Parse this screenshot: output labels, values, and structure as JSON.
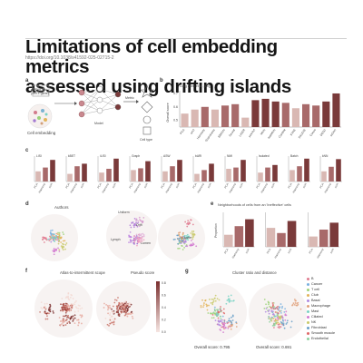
{
  "header": {
    "title_line1": "Limitations of cell embedding metrics",
    "title_line2": "assessed using drifting islands",
    "doi": "https://doi.org/10.1038/s41592-025-02715-2"
  },
  "panel_labels": {
    "a": "a",
    "b": "b",
    "c": "c",
    "d": "d",
    "e": "e",
    "f": "f",
    "g": "g"
  },
  "panel_a": {
    "input_label_1": "scRNA-seq",
    "input_label_2": "(cell × gene)",
    "embedding_label": "Cell embedding",
    "model_label": "Model",
    "cell_type_label": "Cell type",
    "metric_label": "Metric"
  },
  "panel_b": {
    "ylabel": "Overall score",
    "legend_label": "Lung (Ren et al. [sic])",
    "yticks": [
      "0.7",
      "0.6",
      "0.5"
    ]
  },
  "panel_c": {
    "subplots": [
      "LISI",
      "kBET",
      "iLISI",
      "Graph",
      "ASW",
      "bARI",
      "NMI",
      "Isolated",
      "Batch",
      "kNN"
    ],
    "xticks": [
      "PCA",
      "Harmony",
      "scVI"
    ]
  },
  "panel_d": {
    "label_authors": "Authors",
    "label_ids": "IDs",
    "islands": [
      "Uniform",
      "Lymph",
      "Drift",
      "Lumen",
      "Cluster"
    ]
  },
  "panel_e": {
    "title": "Neighborhoods of cells from an 'Ineffective' cells",
    "ylabel": "Proportion",
    "xticks": [
      "PCA",
      "Harmony",
      "scVI"
    ]
  },
  "panel_f": {
    "title_left": "Atlas-to-intermittent scope",
    "title_right": "Pseudo score",
    "colorbar_ticks": [
      "0.8",
      "0.6",
      "0.4",
      "0.2",
      "0.0"
    ]
  },
  "panel_g": {
    "title": "Cluster ratio and distance",
    "score_left": "Overall score: 0.795",
    "score_right": "Overall score: 0.691",
    "legend": [
      "B",
      "Cancer",
      "T cell",
      "Club",
      "Basal",
      "Macrophage",
      "Mast",
      "Ciliated",
      "NK",
      "Fibroblast",
      "Smooth muscle",
      "Endothelial"
    ]
  },
  "chart_data": [
    {
      "type": "bar",
      "title": "",
      "categories": [
        "PCA",
        "scVI",
        "Harmony",
        "Scanorama",
        "BBKNN",
        "Seurat",
        "LIGER",
        "scANVI",
        "MNN",
        "fastMNN",
        "Combat",
        "trVAE",
        "SAUCIE",
        "Conos",
        "DESC",
        "scGen"
      ],
      "values": [
        0.55,
        0.58,
        0.6,
        0.58,
        0.61,
        0.62,
        0.52,
        0.65,
        0.66,
        0.64,
        0.63,
        0.59,
        0.62,
        0.61,
        0.64,
        0.7
      ],
      "ylim": [
        0.45,
        0.72
      ],
      "ylabel": "Overall score"
    },
    {
      "type": "bar",
      "title": "",
      "categories": [
        "PCA",
        "Harmony",
        "scVI"
      ],
      "series": [
        {
          "name": "LISI",
          "values": [
            0.4,
            0.55,
            0.85
          ]
        },
        {
          "name": "kBET",
          "values": [
            0.3,
            0.6,
            0.7
          ]
        },
        {
          "name": "iLISI",
          "values": [
            0.35,
            0.5,
            0.9
          ]
        },
        {
          "name": "Graph",
          "values": [
            0.45,
            0.52,
            0.8
          ]
        },
        {
          "name": "ASW",
          "values": [
            0.4,
            0.6,
            0.85
          ]
        },
        {
          "name": "bARI",
          "values": [
            0.3,
            0.45,
            0.7
          ]
        },
        {
          "name": "NMI",
          "values": [
            0.5,
            0.55,
            0.85
          ]
        },
        {
          "name": "Isolated",
          "values": [
            0.35,
            0.55,
            0.65
          ]
        },
        {
          "name": "Batch",
          "values": [
            0.45,
            0.6,
            0.9
          ]
        },
        {
          "name": "kNN",
          "values": [
            0.4,
            0.58,
            0.88
          ]
        }
      ],
      "ylim": [
        0,
        1
      ]
    },
    {
      "type": "bar",
      "title": "",
      "categories": [
        "PCA",
        "Harmony",
        "scVI"
      ],
      "series": [
        {
          "name": "A",
          "values": [
            0.35,
            0.6,
            0.8
          ]
        },
        {
          "name": "B",
          "values": [
            0.55,
            0.4,
            0.75
          ]
        },
        {
          "name": "C",
          "values": [
            0.3,
            0.5,
            0.7
          ]
        }
      ],
      "ylim": [
        0,
        1
      ]
    }
  ],
  "colors": {
    "bar_dark": "#7a3a3a",
    "bar_mid": "#a86a6a",
    "bar_light": "#d9b8b3",
    "bar_pale": "#eddcd8"
  }
}
